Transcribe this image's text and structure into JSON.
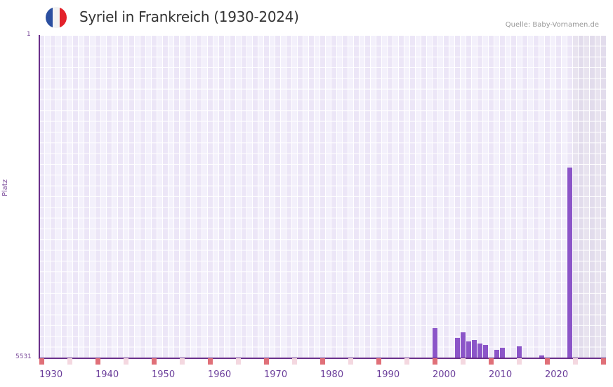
{
  "header": {
    "title": "Syriel in Frankreich (1930-2024)",
    "source": "Quelle: Baby-Vornamen.de",
    "flag_colors": [
      "#2b4fa0",
      "#f2f2f2",
      "#e3222b"
    ]
  },
  "colors": {
    "bar": "#8b55c8",
    "axis": "#6a2f8a",
    "decade_marker": "#e07078",
    "halfdecade_marker": "#f4d8e0"
  },
  "chart_data": {
    "type": "bar",
    "title": "Syriel in Frankreich (1930-2024)",
    "xlabel": "",
    "ylabel": "Platz",
    "y_inverted": true,
    "ylim": [
      5531,
      1
    ],
    "yticks": [
      "1",
      "5531"
    ],
    "xticks": [
      "1930",
      "1940",
      "1950",
      "1960",
      "1970",
      "1980",
      "1990",
      "2000",
      "2010",
      "2020"
    ],
    "x_range": [
      1930,
      2030
    ],
    "shaded_future_from": 2025,
    "grid": true,
    "x": [
      2000,
      2004,
      2005,
      2006,
      2007,
      2008,
      2009,
      2011,
      2012,
      2015,
      2019,
      2024
    ],
    "values": [
      5025,
      5194,
      5098,
      5254,
      5230,
      5290,
      5314,
      5398,
      5362,
      5338,
      5494,
      2273
    ]
  },
  "axis": {
    "ylabel": "Platz",
    "ytop": "1",
    "ybottom": "5531"
  }
}
